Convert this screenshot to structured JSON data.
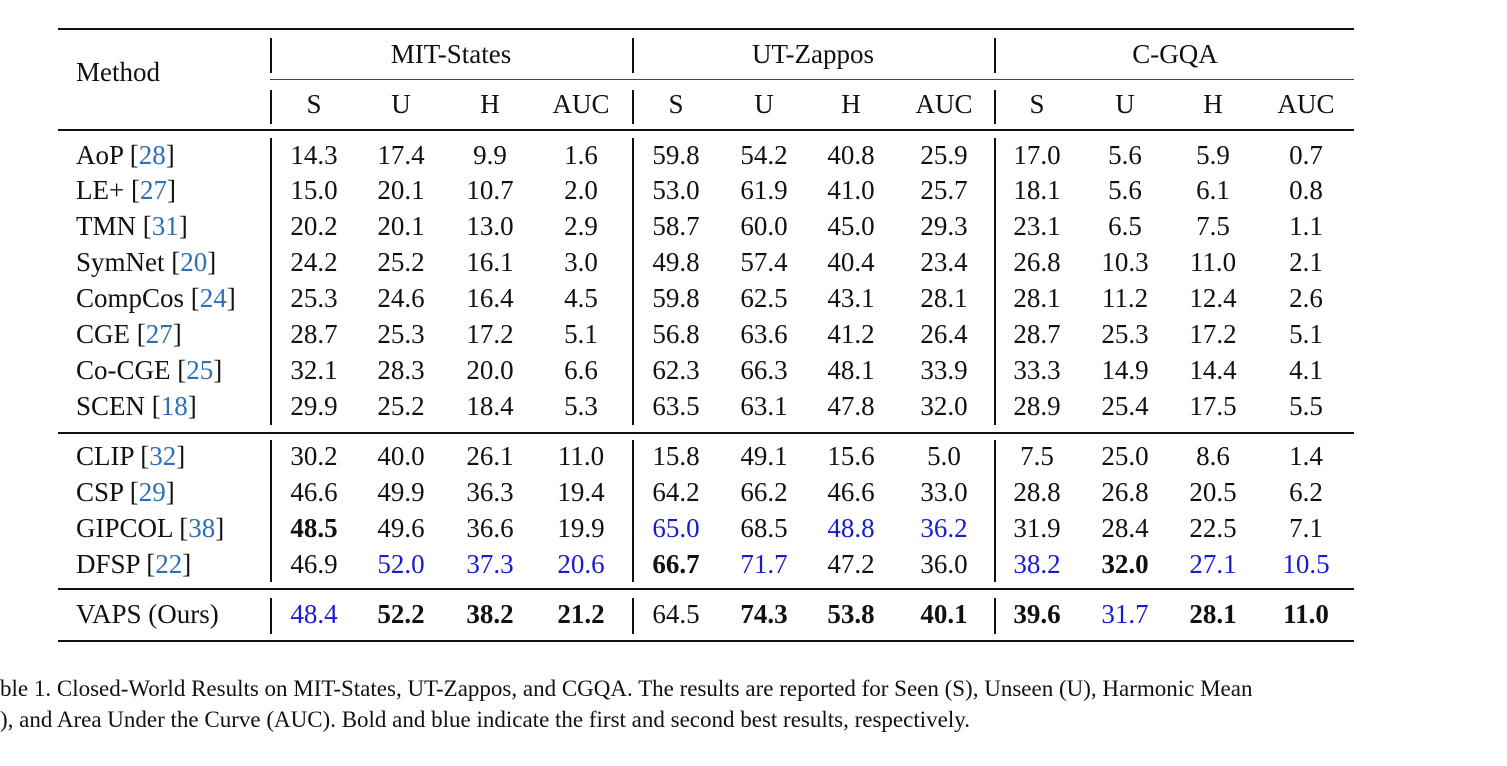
{
  "header": {
    "method_label": "Method",
    "datasets": [
      "MIT-States",
      "UT-Zappos",
      "C-GQA"
    ],
    "metrics": [
      "S",
      "U",
      "H",
      "AUC"
    ]
  },
  "groups": [
    [
      {
        "name": "AoP",
        "ref": "28",
        "values": [
          [
            "14.3",
            ""
          ],
          [
            "17.4",
            ""
          ],
          [
            "9.9",
            ""
          ],
          [
            "1.6",
            ""
          ],
          [
            "59.8",
            ""
          ],
          [
            "54.2",
            ""
          ],
          [
            "40.8",
            ""
          ],
          [
            "25.9",
            ""
          ],
          [
            "17.0",
            ""
          ],
          [
            "5.6",
            ""
          ],
          [
            "5.9",
            ""
          ],
          [
            "0.7",
            ""
          ]
        ]
      },
      {
        "name": "LE+",
        "ref": "27",
        "values": [
          [
            "15.0",
            ""
          ],
          [
            "20.1",
            ""
          ],
          [
            "10.7",
            ""
          ],
          [
            "2.0",
            ""
          ],
          [
            "53.0",
            ""
          ],
          [
            "61.9",
            ""
          ],
          [
            "41.0",
            ""
          ],
          [
            "25.7",
            ""
          ],
          [
            "18.1",
            ""
          ],
          [
            "5.6",
            ""
          ],
          [
            "6.1",
            ""
          ],
          [
            "0.8",
            ""
          ]
        ]
      },
      {
        "name": "TMN",
        "ref": "31",
        "values": [
          [
            "20.2",
            ""
          ],
          [
            "20.1",
            ""
          ],
          [
            "13.0",
            ""
          ],
          [
            "2.9",
            ""
          ],
          [
            "58.7",
            ""
          ],
          [
            "60.0",
            ""
          ],
          [
            "45.0",
            ""
          ],
          [
            "29.3",
            ""
          ],
          [
            "23.1",
            ""
          ],
          [
            "6.5",
            ""
          ],
          [
            "7.5",
            ""
          ],
          [
            "1.1",
            ""
          ]
        ]
      },
      {
        "name": "SymNet",
        "ref": "20",
        "values": [
          [
            "24.2",
            ""
          ],
          [
            "25.2",
            ""
          ],
          [
            "16.1",
            ""
          ],
          [
            "3.0",
            ""
          ],
          [
            "49.8",
            ""
          ],
          [
            "57.4",
            ""
          ],
          [
            "40.4",
            ""
          ],
          [
            "23.4",
            ""
          ],
          [
            "26.8",
            ""
          ],
          [
            "10.3",
            ""
          ],
          [
            "11.0",
            ""
          ],
          [
            "2.1",
            ""
          ]
        ]
      },
      {
        "name": "CompCos",
        "ref": "24",
        "values": [
          [
            "25.3",
            ""
          ],
          [
            "24.6",
            ""
          ],
          [
            "16.4",
            ""
          ],
          [
            "4.5",
            ""
          ],
          [
            "59.8",
            ""
          ],
          [
            "62.5",
            ""
          ],
          [
            "43.1",
            ""
          ],
          [
            "28.1",
            ""
          ],
          [
            "28.1",
            ""
          ],
          [
            "11.2",
            ""
          ],
          [
            "12.4",
            ""
          ],
          [
            "2.6",
            ""
          ]
        ]
      },
      {
        "name": "CGE",
        "ref": "27",
        "values": [
          [
            "28.7",
            ""
          ],
          [
            "25.3",
            ""
          ],
          [
            "17.2",
            ""
          ],
          [
            "5.1",
            ""
          ],
          [
            "56.8",
            ""
          ],
          [
            "63.6",
            ""
          ],
          [
            "41.2",
            ""
          ],
          [
            "26.4",
            ""
          ],
          [
            "28.7",
            ""
          ],
          [
            "25.3",
            ""
          ],
          [
            "17.2",
            ""
          ],
          [
            "5.1",
            ""
          ]
        ]
      },
      {
        "name": "Co-CGE",
        "ref": "25",
        "values": [
          [
            "32.1",
            ""
          ],
          [
            "28.3",
            ""
          ],
          [
            "20.0",
            ""
          ],
          [
            "6.6",
            ""
          ],
          [
            "62.3",
            ""
          ],
          [
            "66.3",
            ""
          ],
          [
            "48.1",
            ""
          ],
          [
            "33.9",
            ""
          ],
          [
            "33.3",
            ""
          ],
          [
            "14.9",
            ""
          ],
          [
            "14.4",
            ""
          ],
          [
            "4.1",
            ""
          ]
        ]
      },
      {
        "name": "SCEN",
        "ref": "18",
        "values": [
          [
            "29.9",
            ""
          ],
          [
            "25.2",
            ""
          ],
          [
            "18.4",
            ""
          ],
          [
            "5.3",
            ""
          ],
          [
            "63.5",
            ""
          ],
          [
            "63.1",
            ""
          ],
          [
            "47.8",
            ""
          ],
          [
            "32.0",
            ""
          ],
          [
            "28.9",
            ""
          ],
          [
            "25.4",
            ""
          ],
          [
            "17.5",
            ""
          ],
          [
            "5.5",
            ""
          ]
        ]
      }
    ],
    [
      {
        "name": "CLIP",
        "ref": "32",
        "values": [
          [
            "30.2",
            ""
          ],
          [
            "40.0",
            ""
          ],
          [
            "26.1",
            ""
          ],
          [
            "11.0",
            ""
          ],
          [
            "15.8",
            ""
          ],
          [
            "49.1",
            ""
          ],
          [
            "15.6",
            ""
          ],
          [
            "5.0",
            ""
          ],
          [
            "7.5",
            ""
          ],
          [
            "25.0",
            ""
          ],
          [
            "8.6",
            ""
          ],
          [
            "1.4",
            ""
          ]
        ]
      },
      {
        "name": "CSP",
        "ref": "29",
        "values": [
          [
            "46.6",
            ""
          ],
          [
            "49.9",
            ""
          ],
          [
            "36.3",
            ""
          ],
          [
            "19.4",
            ""
          ],
          [
            "64.2",
            ""
          ],
          [
            "66.2",
            ""
          ],
          [
            "46.6",
            ""
          ],
          [
            "33.0",
            ""
          ],
          [
            "28.8",
            ""
          ],
          [
            "26.8",
            ""
          ],
          [
            "20.5",
            ""
          ],
          [
            "6.2",
            ""
          ]
        ]
      },
      {
        "name": "GIPCOL",
        "ref": "38",
        "values": [
          [
            "48.5",
            "b"
          ],
          [
            "49.6",
            ""
          ],
          [
            "36.6",
            ""
          ],
          [
            "19.9",
            ""
          ],
          [
            "65.0",
            "blue"
          ],
          [
            "68.5",
            ""
          ],
          [
            "48.8",
            "blue"
          ],
          [
            "36.2",
            "blue"
          ],
          [
            "31.9",
            ""
          ],
          [
            "28.4",
            ""
          ],
          [
            "22.5",
            ""
          ],
          [
            "7.1",
            ""
          ]
        ]
      },
      {
        "name": "DFSP",
        "ref": "22",
        "values": [
          [
            "46.9",
            ""
          ],
          [
            "52.0",
            "blue"
          ],
          [
            "37.3",
            "blue"
          ],
          [
            "20.6",
            "blue"
          ],
          [
            "66.7",
            "b"
          ],
          [
            "71.7",
            "blue"
          ],
          [
            "47.2",
            ""
          ],
          [
            "36.0",
            ""
          ],
          [
            "38.2",
            "blue"
          ],
          [
            "32.0",
            "b"
          ],
          [
            "27.1",
            "blue"
          ],
          [
            "10.5",
            "blue"
          ]
        ]
      }
    ],
    [
      {
        "name": "VAPS (Ours)",
        "ref": "",
        "values": [
          [
            "48.4",
            "blue"
          ],
          [
            "52.2",
            "b"
          ],
          [
            "38.2",
            "b"
          ],
          [
            "21.2",
            "b"
          ],
          [
            "64.5",
            ""
          ],
          [
            "74.3",
            "b"
          ],
          [
            "53.8",
            "b"
          ],
          [
            "40.1",
            "b"
          ],
          [
            "39.6",
            "b"
          ],
          [
            "31.7",
            "blue"
          ],
          [
            "28.1",
            "b"
          ],
          [
            "11.0",
            "b"
          ]
        ]
      }
    ]
  ],
  "caption": {
    "line1": "ble 1. Closed-World Results on MIT-States, UT-Zappos, and CGQA. The results are reported for Seen (S), Unseen (U), Harmonic Mean",
    "line2": "), and Area Under the Curve (AUC). Bold and blue indicate the first and second best results, respectively."
  }
}
